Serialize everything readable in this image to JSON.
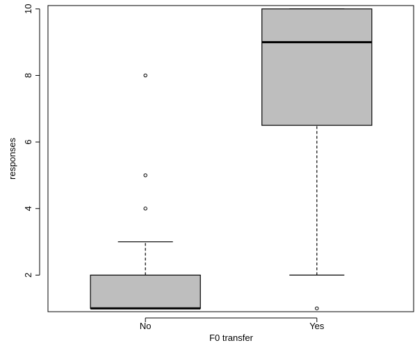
{
  "chart_data": {
    "type": "boxplot",
    "categories": [
      "No",
      "Yes"
    ],
    "boxes": [
      {
        "name": "No",
        "min": 1,
        "q1": 1,
        "median": 1,
        "q3": 2,
        "max": 3,
        "outliers": [
          4,
          5,
          8
        ]
      },
      {
        "name": "Yes",
        "min": 2,
        "q1": 6.5,
        "median": 9,
        "q3": 10,
        "max": 10,
        "outliers": [
          1
        ]
      }
    ],
    "xlabel": "F0 transfer",
    "ylabel": "responses",
    "ylim": [
      0.9,
      10.1
    ],
    "yticks": [
      2,
      4,
      6,
      8,
      10
    ],
    "grid": false,
    "colors": {
      "box_fill": "#bebebe",
      "stroke": "#000000"
    }
  }
}
